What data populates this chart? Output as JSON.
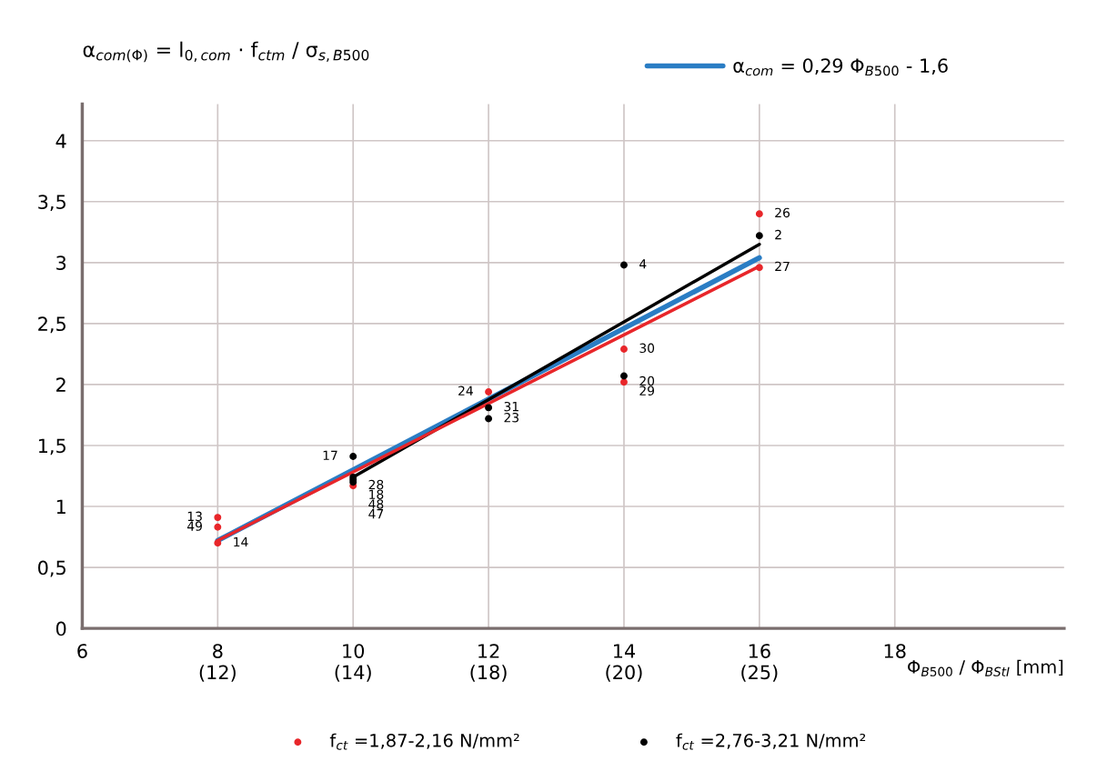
{
  "chart_data": {
    "type": "scatter",
    "ylabel": "α$_{com(Φ)}$ = l$_{0,com}$ · f$_{ctm}$ / σ$_{s,B500}$",
    "xlabel": "Φ$_{B500}$ / Φ$_{BStI}$ [mm]",
    "xlim": [
      6,
      20.5
    ],
    "ylim": [
      0,
      4.3
    ],
    "xticks": [
      6,
      {
        "value": 8,
        "label": "8\n(12)"
      },
      {
        "value": 10,
        "label": "10\n(14)"
      },
      {
        "value": 12,
        "label": "12\n(18)"
      },
      {
        "value": 14,
        "label": "14\n(20)"
      },
      {
        "value": 16,
        "label": "16\n(25)"
      },
      18
    ],
    "yticks": [
      0,
      {
        "value": 0.5,
        "label": "0,5"
      },
      1,
      {
        "value": 1.5,
        "label": "1,5"
      },
      2,
      {
        "value": 2.5,
        "label": "2,5"
      },
      3,
      {
        "value": 3.5,
        "label": "3,5"
      },
      4
    ],
    "grid": true,
    "legend": "bottom",
    "series": [
      {
        "name": "f$_{ct}$ =1,87-2,16 N/mm²",
        "marker": "circle",
        "color": "#e8262a",
        "x": [
          8,
          8,
          8,
          10,
          12,
          14,
          14,
          16,
          16
        ],
        "values": [
          0.91,
          0.83,
          0.7,
          1.17,
          1.94,
          2.29,
          2.02,
          3.4,
          2.96
        ]
      },
      {
        "name": "f$_{ct}$ =2,76-3,21 N/mm²",
        "marker": "circle",
        "color": "#000000",
        "x": [
          10,
          10,
          10,
          10,
          12,
          12,
          14,
          14,
          16
        ],
        "values": [
          1.41,
          1.24,
          1.22,
          1.2,
          1.81,
          1.72,
          2.07,
          2.98,
          3.22
        ]
      },
      {
        "name": "α$_{com}$ = 0,29 Φ$_{B500}$ - 1,6",
        "type": "line",
        "color": "#2a7dc4",
        "x": [
          8,
          16
        ],
        "values": [
          0.72,
          3.04
        ]
      },
      {
        "type": "line",
        "color": "#000000",
        "x": [
          10,
          16
        ],
        "values": [
          1.24,
          3.15
        ]
      },
      {
        "type": "line",
        "color": "#e8262a",
        "x": [
          8,
          16
        ],
        "values": [
          0.72,
          2.97
        ]
      }
    ],
    "annotations": [
      {
        "text": "13",
        "x": 8,
        "y": 0.91
      },
      {
        "text": "49",
        "x": 8,
        "y": 0.83
      },
      {
        "text": "14",
        "x": 8,
        "y": 0.7
      },
      {
        "text": "28",
        "x": 10,
        "y": 1.17
      },
      {
        "text": "24",
        "x": 12,
        "y": 1.94
      },
      {
        "text": "30",
        "x": 14,
        "y": 2.29
      },
      {
        "text": "20",
        "x": 14,
        "y": 2.02
      },
      {
        "text": "26",
        "x": 16,
        "y": 3.4
      },
      {
        "text": "27",
        "x": 16,
        "y": 2.96
      },
      {
        "text": "17",
        "x": 10,
        "y": 1.41
      },
      {
        "text": "18",
        "x": 10,
        "y": 1.24
      },
      {
        "text": "48",
        "x": 10,
        "y": 1.22
      },
      {
        "text": "47",
        "x": 10,
        "y": 1.2
      },
      {
        "text": "31",
        "x": 12,
        "y": 1.81
      },
      {
        "text": "23",
        "x": 12,
        "y": 1.72
      },
      {
        "text": "29",
        "x": 14,
        "y": 2.07
      },
      {
        "text": "4",
        "x": 14,
        "y": 2.98
      },
      {
        "text": "2",
        "x": 16,
        "y": 3.22
      }
    ]
  }
}
